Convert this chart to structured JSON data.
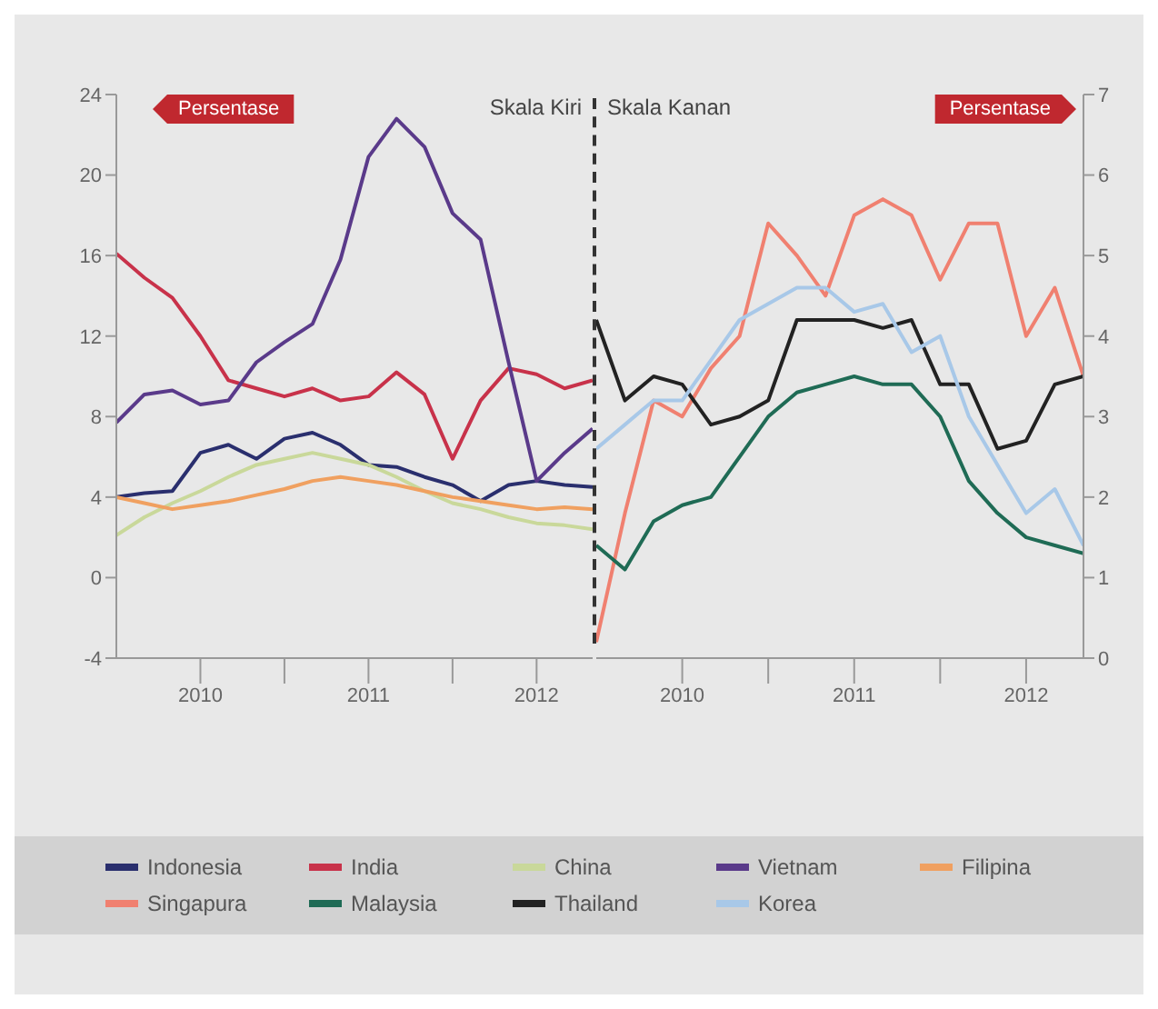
{
  "chart_data": [
    {
      "type": "line",
      "annotations": [
        "Persentase",
        "Skala Kiri"
      ],
      "x": [
        "2010-01",
        "2010-03",
        "2010-05",
        "2010-07",
        "2010-09",
        "2010-11",
        "2011-01",
        "2011-03",
        "2011-05",
        "2011-07",
        "2011-09",
        "2011-11",
        "2012-01",
        "2012-03",
        "2012-05",
        "2012-07",
        "2012-09",
        "2012-11"
      ],
      "series": [
        {
          "name": "Indonesia",
          "color": "#2a2f6e",
          "values": [
            4.0,
            4.2,
            4.3,
            6.2,
            6.6,
            5.9,
            6.9,
            7.2,
            6.6,
            5.6,
            5.5,
            5.0,
            4.6,
            3.8,
            4.6,
            4.8,
            4.6,
            4.5
          ]
        },
        {
          "name": "India",
          "color": "#c8324a",
          "values": [
            16.1,
            14.9,
            13.9,
            12.0,
            9.8,
            9.4,
            9.0,
            9.4,
            8.8,
            9.0,
            10.2,
            9.1,
            5.9,
            8.8,
            10.4,
            10.1,
            9.4,
            9.8
          ]
        },
        {
          "name": "China",
          "color": "#c9d89a",
          "values": [
            2.1,
            3.0,
            3.7,
            4.3,
            5.0,
            5.6,
            5.9,
            6.2,
            5.9,
            5.6,
            5.0,
            4.3,
            3.7,
            3.4,
            3.0,
            2.7,
            2.6,
            2.4
          ]
        },
        {
          "name": "Vietnam",
          "color": "#5a3a8a",
          "values": [
            7.7,
            9.1,
            9.3,
            8.6,
            8.8,
            10.7,
            11.7,
            12.6,
            15.8,
            20.9,
            22.8,
            21.4,
            18.1,
            16.8,
            10.7,
            4.8,
            6.2,
            7.4
          ]
        },
        {
          "name": "Filipina",
          "color": "#f0a060",
          "values": [
            4.0,
            3.7,
            3.4,
            3.6,
            3.8,
            4.1,
            4.4,
            4.8,
            5.0,
            4.8,
            4.6,
            4.3,
            4.0,
            3.8,
            3.6,
            3.4,
            3.5,
            3.4
          ]
        }
      ],
      "xlim": [
        "2010-01",
        "2012-11"
      ],
      "xticks": [
        {
          "value": "2010-07",
          "label": "2010"
        },
        {
          "value": "2011-01",
          "label": null
        },
        {
          "value": "2011-07",
          "label": "2011"
        },
        {
          "value": "2012-01",
          "label": null
        },
        {
          "value": "2012-07",
          "label": "2012"
        }
      ],
      "ylim": [
        -4,
        24
      ],
      "yticks": [
        -4,
        0,
        4,
        8,
        12,
        16,
        20,
        24
      ],
      "marker": "none",
      "legend": "bottom"
    },
    {
      "type": "line",
      "annotations": [
        "Skala Kanan",
        "Persentase"
      ],
      "x": [
        "2010-01",
        "2010-03",
        "2010-05",
        "2010-07",
        "2010-09",
        "2010-11",
        "2011-01",
        "2011-03",
        "2011-05",
        "2011-07",
        "2011-09",
        "2011-11",
        "2012-01",
        "2012-03",
        "2012-05",
        "2012-07",
        "2012-09",
        "2012-11"
      ],
      "series": [
        {
          "name": "Singapura",
          "color": "#f08070",
          "values": [
            0.2,
            1.8,
            3.2,
            3.0,
            3.6,
            4.0,
            5.4,
            5.0,
            4.5,
            5.5,
            5.7,
            5.5,
            4.7,
            5.4,
            5.4,
            4.0,
            4.6,
            3.5
          ]
        },
        {
          "name": "Malaysia",
          "color": "#1f6b55",
          "values": [
            1.4,
            1.1,
            1.7,
            1.9,
            2.0,
            2.5,
            3.0,
            3.3,
            3.4,
            3.5,
            3.4,
            3.4,
            3.0,
            2.2,
            1.8,
            1.5,
            1.4,
            1.3
          ]
        },
        {
          "name": "Thailand",
          "color": "#222222",
          "values": [
            4.2,
            3.2,
            3.5,
            3.4,
            2.9,
            3.0,
            3.2,
            4.2,
            4.2,
            4.2,
            4.1,
            4.2,
            3.4,
            3.4,
            2.6,
            2.7,
            3.4,
            3.5
          ]
        },
        {
          "name": "Korea",
          "color": "#a8c8e8",
          "values": [
            2.6,
            2.9,
            3.2,
            3.2,
            3.7,
            4.2,
            4.4,
            4.6,
            4.6,
            4.3,
            4.4,
            3.8,
            4.0,
            3.0,
            2.4,
            1.8,
            2.1,
            1.4
          ]
        }
      ],
      "xlim": [
        "2010-01",
        "2012-11"
      ],
      "xticks": [
        {
          "value": "2010-07",
          "label": "2010"
        },
        {
          "value": "2011-01",
          "label": null
        },
        {
          "value": "2011-07",
          "label": "2011"
        },
        {
          "value": "2012-01",
          "label": null
        },
        {
          "value": "2012-07",
          "label": "2012"
        }
      ],
      "ylim": [
        0,
        7
      ],
      "yticks": [
        0,
        1,
        2,
        3,
        4,
        5,
        6,
        7
      ],
      "marker": "none",
      "legend": "bottom"
    }
  ]
}
